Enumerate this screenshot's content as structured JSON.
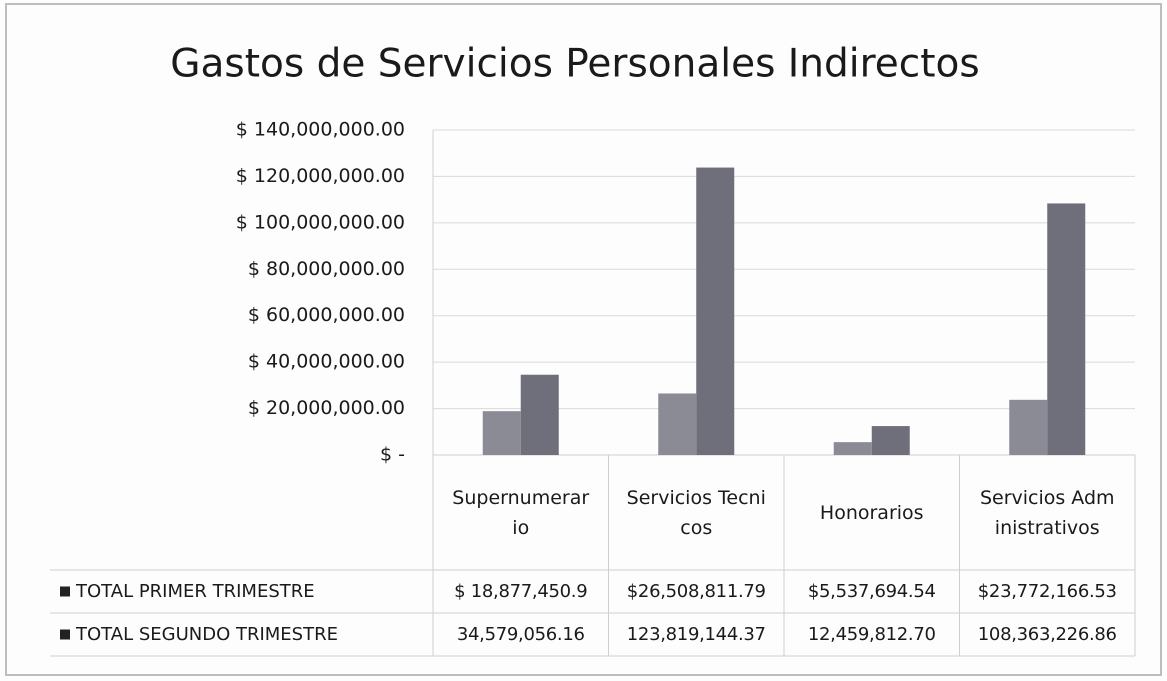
{
  "chart_data": {
    "type": "bar",
    "title": "Gastos de Servicios Personales  Indirectos",
    "categories": [
      "Supernumerario",
      "Servicios Tecnicos",
      "Honorarios",
      "Servicios Administrativos"
    ],
    "series": [
      {
        "name": "TOTAL PRIMER TRIMESTRE",
        "color": "#8b8b96",
        "values": [
          18877450.9,
          26508811.79,
          5537694.54,
          23772166.53
        ],
        "value_labels": [
          "$ 18,877,450.9",
          "$26,508,811.79",
          "$5,537,694.54",
          "$23,772,166.53"
        ]
      },
      {
        "name": "TOTAL SEGUNDO TRIMESTRE",
        "color": "#6f6f7b",
        "values": [
          34579056.16,
          123819144.37,
          12459812.7,
          108363226.86
        ],
        "value_labels": [
          "34,579,056.16",
          "123,819,144.37",
          "12,459,812.70",
          "108,363,226.86"
        ]
      }
    ],
    "ylim": [
      0,
      140000000
    ],
    "yticks": [
      {
        "value": 0,
        "label": "$ -"
      },
      {
        "value": 20000000,
        "label": "$ 20,000,000.00"
      },
      {
        "value": 40000000,
        "label": "$ 40,000,000.00"
      },
      {
        "value": 60000000,
        "label": "$ 60,000,000.00"
      },
      {
        "value": 80000000,
        "label": "$ 80,000,000.00"
      },
      {
        "value": 100000000,
        "label": "$ 100,000,000.00"
      },
      {
        "value": 120000000,
        "label": "$ 120,000,000.00"
      },
      {
        "value": 140000000,
        "label": "$ 140,000,000.00"
      }
    ],
    "grid": true
  }
}
